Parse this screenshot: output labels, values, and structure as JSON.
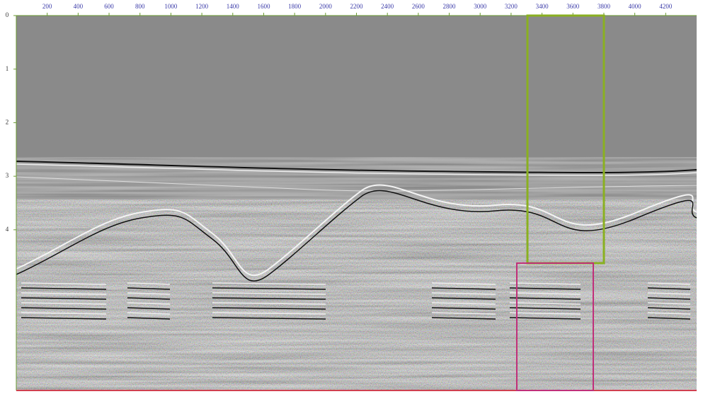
{
  "chart_data": {
    "type": "seismic",
    "xlim": [
      0,
      4400
    ],
    "xticks": [
      200,
      400,
      600,
      800,
      1000,
      1200,
      1400,
      1600,
      1800,
      2000,
      2200,
      2400,
      2600,
      2800,
      3000,
      3200,
      3400,
      3600,
      3800,
      4000,
      4200
    ],
    "ylim": [
      0,
      7
    ],
    "yticks": [
      0,
      1,
      2,
      3,
      4
    ]
  }
}
